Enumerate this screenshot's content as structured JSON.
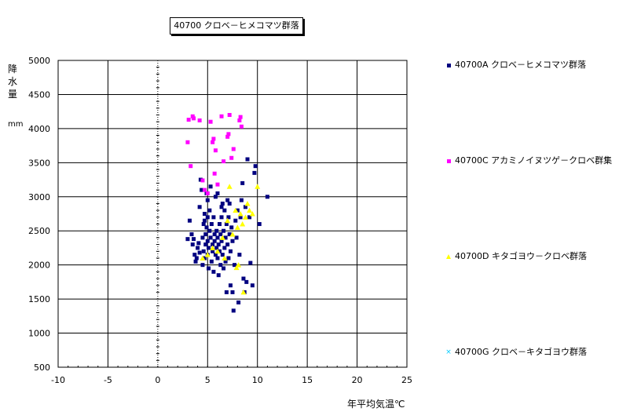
{
  "chart_data": {
    "type": "scatter",
    "title": "40700 クロベ－ヒメコマツ群落",
    "xlabel": "年平均気温℃",
    "ylabel": "降水量",
    "yunit": "mm",
    "xlim": [
      -10,
      25
    ],
    "ylim": [
      500,
      5000
    ],
    "xticks": [
      "-10",
      "-5",
      "0",
      "5",
      "10",
      "15",
      "20",
      "25"
    ],
    "yticks": [
      "500",
      "1000",
      "1500",
      "2000",
      "2500",
      "3000",
      "3500",
      "4000",
      "4500",
      "5000"
    ],
    "grid": true,
    "legend_position": "right",
    "series": [
      {
        "name": "40700A クロベ－ヒメコマツ群落",
        "marker": "square",
        "color": "#000080",
        "points": [
          [
            3.0,
            2380
          ],
          [
            3.2,
            2650
          ],
          [
            3.4,
            2450
          ],
          [
            3.5,
            2300
          ],
          [
            3.6,
            2380
          ],
          [
            3.7,
            2150
          ],
          [
            3.8,
            2050
          ],
          [
            3.9,
            2100
          ],
          [
            4.0,
            2250
          ],
          [
            4.1,
            2320
          ],
          [
            4.2,
            2180
          ],
          [
            4.2,
            2850
          ],
          [
            4.3,
            3250
          ],
          [
            4.4,
            3100
          ],
          [
            4.5,
            2000
          ],
          [
            4.5,
            2400
          ],
          [
            4.6,
            2600
          ],
          [
            4.6,
            2200
          ],
          [
            4.7,
            2100
          ],
          [
            4.7,
            2750
          ],
          [
            4.8,
            2450
          ],
          [
            4.8,
            2300
          ],
          [
            4.9,
            2550
          ],
          [
            4.9,
            3050
          ],
          [
            5.0,
            2350
          ],
          [
            5.0,
            2150
          ],
          [
            5.0,
            2700
          ],
          [
            5.1,
            2250
          ],
          [
            5.1,
            1950
          ],
          [
            5.2,
            2500
          ],
          [
            5.2,
            2800
          ],
          [
            5.3,
            2400
          ],
          [
            5.3,
            3150
          ],
          [
            5.4,
            2050
          ],
          [
            5.4,
            2600
          ],
          [
            5.5,
            2300
          ],
          [
            5.5,
            2200
          ],
          [
            5.6,
            1900
          ],
          [
            5.6,
            2700
          ],
          [
            5.7,
            2450
          ],
          [
            5.7,
            2350
          ],
          [
            5.8,
            3000
          ],
          [
            5.8,
            2150
          ],
          [
            5.9,
            2250
          ],
          [
            5.9,
            2500
          ],
          [
            6.0,
            2100
          ],
          [
            6.0,
            2400
          ],
          [
            6.0,
            3050
          ],
          [
            6.1,
            2300
          ],
          [
            6.1,
            1850
          ],
          [
            6.2,
            2600
          ],
          [
            6.2,
            2200
          ],
          [
            6.3,
            2450
          ],
          [
            6.3,
            2000
          ],
          [
            6.4,
            2700
          ],
          [
            6.4,
            2350
          ],
          [
            6.5,
            2150
          ],
          [
            6.5,
            2900
          ],
          [
            6.6,
            2500
          ],
          [
            6.6,
            1950
          ],
          [
            6.7,
            2250
          ],
          [
            6.7,
            2800
          ],
          [
            6.8,
            2050
          ],
          [
            6.8,
            2400
          ],
          [
            6.9,
            1600
          ],
          [
            6.9,
            2600
          ],
          [
            7.0,
            2300
          ],
          [
            7.0,
            2950
          ],
          [
            7.1,
            2100
          ],
          [
            7.1,
            2700
          ],
          [
            7.2,
            2450
          ],
          [
            7.3,
            1700
          ],
          [
            7.3,
            2200
          ],
          [
            7.4,
            2550
          ],
          [
            7.5,
            1600
          ],
          [
            7.5,
            2350
          ],
          [
            7.6,
            1330
          ],
          [
            7.7,
            2000
          ],
          [
            7.8,
            2650
          ],
          [
            7.9,
            2400
          ],
          [
            8.0,
            2800
          ],
          [
            8.1,
            1450
          ],
          [
            8.2,
            2150
          ],
          [
            8.3,
            2700
          ],
          [
            8.4,
            2950
          ],
          [
            8.5,
            3200
          ],
          [
            8.6,
            1800
          ],
          [
            8.7,
            1600
          ],
          [
            8.8,
            2850
          ],
          [
            8.9,
            1750
          ],
          [
            9.0,
            3550
          ],
          [
            9.2,
            2700
          ],
          [
            9.3,
            2030
          ],
          [
            9.5,
            1700
          ],
          [
            9.7,
            3350
          ],
          [
            9.8,
            3450
          ],
          [
            10.2,
            2600
          ],
          [
            11.0,
            3000
          ],
          [
            7.2,
            2900
          ],
          [
            6.4,
            2850
          ],
          [
            5.0,
            2950
          ],
          [
            4.7,
            2650
          ]
        ]
      },
      {
        "name": "40700C アカミノイヌツゲ－クロベ群集",
        "marker": "square",
        "color": "#ff00ff",
        "points": [
          [
            3.0,
            3800
          ],
          [
            3.1,
            4130
          ],
          [
            3.3,
            3450
          ],
          [
            3.5,
            4180
          ],
          [
            3.6,
            4150
          ],
          [
            4.2,
            4120
          ],
          [
            4.5,
            3240
          ],
          [
            4.7,
            3100
          ],
          [
            5.0,
            3050
          ],
          [
            5.3,
            4100
          ],
          [
            5.5,
            3800
          ],
          [
            5.6,
            3850
          ],
          [
            5.7,
            3340
          ],
          [
            5.8,
            3680
          ],
          [
            6.0,
            3180
          ],
          [
            6.4,
            4180
          ],
          [
            6.6,
            3520
          ],
          [
            7.0,
            3880
          ],
          [
            7.1,
            3920
          ],
          [
            7.2,
            4200
          ],
          [
            7.4,
            3570
          ],
          [
            7.6,
            3700
          ],
          [
            8.2,
            4120
          ],
          [
            8.3,
            4170
          ],
          [
            8.4,
            4030
          ]
        ]
      },
      {
        "name": "40700D キタゴヨウ－クロベ群落",
        "marker": "triangle",
        "color": "#ffff00",
        "points": [
          [
            4.5,
            2100
          ],
          [
            5.0,
            2150
          ],
          [
            5.5,
            2250
          ],
          [
            6.0,
            2200
          ],
          [
            6.5,
            2400
          ],
          [
            6.7,
            2100
          ],
          [
            7.0,
            2650
          ],
          [
            7.2,
            3150
          ],
          [
            7.5,
            2450
          ],
          [
            7.8,
            2800
          ],
          [
            8.0,
            2550
          ],
          [
            8.1,
            2000
          ],
          [
            8.3,
            2750
          ],
          [
            8.5,
            2600
          ],
          [
            8.6,
            1600
          ],
          [
            8.8,
            2700
          ],
          [
            9.0,
            2900
          ],
          [
            9.2,
            2800
          ],
          [
            9.5,
            2750
          ],
          [
            10.0,
            3150
          ],
          [
            7.9,
            1960
          ]
        ]
      },
      {
        "name": "40700G クロベ－キタゴヨウ群落",
        "marker": "x",
        "color": "#00ccff",
        "points": []
      }
    ]
  }
}
